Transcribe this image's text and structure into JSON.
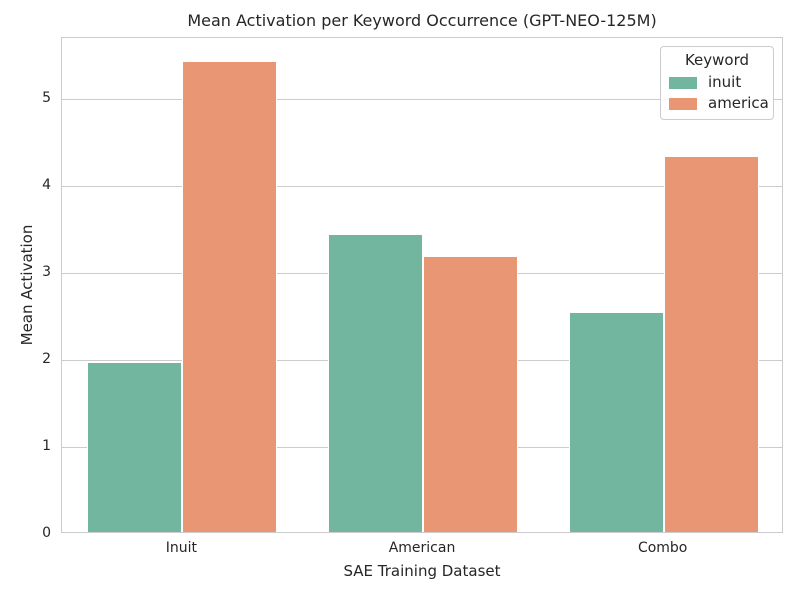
{
  "figure": {
    "background": "#ffffff",
    "text_color": "#262626",
    "grid_color": "#cccccc",
    "spine_color": "#cbcbcb"
  },
  "chart_data": {
    "type": "bar",
    "title": "Mean Activation per Keyword Occurrence (GPT-NEO-125M)",
    "xlabel": "SAE Training Dataset",
    "ylabel": "Mean Activation",
    "categories": [
      "Inuit",
      "American",
      "Combo"
    ],
    "series": [
      {
        "name": "inuit",
        "color": "#73b6a0",
        "values": [
          1.95,
          3.43,
          2.53
        ]
      },
      {
        "name": "america",
        "color": "#e99674",
        "values": [
          5.41,
          3.17,
          4.32
        ]
      }
    ],
    "ylim": [
      0,
      5.7
    ],
    "yticks": [
      0,
      1,
      2,
      3,
      4,
      5
    ],
    "grid": "horizontal",
    "legend": {
      "title": "Keyword",
      "position": "upper right"
    }
  }
}
